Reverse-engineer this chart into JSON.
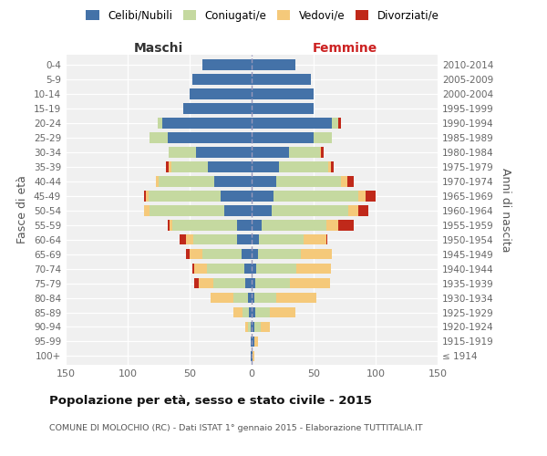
{
  "age_groups": [
    "100+",
    "95-99",
    "90-94",
    "85-89",
    "80-84",
    "75-79",
    "70-74",
    "65-69",
    "60-64",
    "55-59",
    "50-54",
    "45-49",
    "40-44",
    "35-39",
    "30-34",
    "25-29",
    "20-24",
    "15-19",
    "10-14",
    "5-9",
    "0-4"
  ],
  "birth_years": [
    "≤ 1914",
    "1915-1919",
    "1920-1924",
    "1925-1929",
    "1930-1934",
    "1935-1939",
    "1940-1944",
    "1945-1949",
    "1950-1954",
    "1955-1959",
    "1960-1964",
    "1965-1969",
    "1970-1974",
    "1975-1979",
    "1980-1984",
    "1985-1989",
    "1990-1994",
    "1995-1999",
    "2000-2004",
    "2005-2009",
    "2010-2014"
  ],
  "colors": {
    "celibi": "#4472a8",
    "coniugati": "#c5d9a0",
    "vedovi": "#f5c97a",
    "divorziati": "#c0291a"
  },
  "males": {
    "celibi": [
      1,
      1,
      1,
      2,
      3,
      5,
      6,
      8,
      12,
      12,
      22,
      25,
      30,
      35,
      45,
      68,
      72,
      55,
      50,
      48,
      40
    ],
    "coniugati": [
      0,
      0,
      2,
      5,
      12,
      26,
      30,
      32,
      35,
      52,
      60,
      58,
      45,
      30,
      22,
      14,
      4,
      0,
      0,
      0,
      0
    ],
    "vedovi": [
      0,
      0,
      2,
      8,
      18,
      12,
      10,
      10,
      6,
      2,
      5,
      2,
      2,
      2,
      0,
      0,
      0,
      0,
      0,
      0,
      0
    ],
    "divorziati": [
      0,
      0,
      0,
      0,
      0,
      3,
      2,
      3,
      5,
      2,
      0,
      2,
      0,
      2,
      0,
      0,
      0,
      0,
      0,
      0,
      0
    ]
  },
  "females": {
    "nubili": [
      1,
      2,
      2,
      3,
      2,
      3,
      4,
      5,
      6,
      8,
      16,
      18,
      20,
      22,
      30,
      50,
      65,
      50,
      50,
      48,
      35
    ],
    "coniugate": [
      0,
      0,
      5,
      12,
      18,
      28,
      32,
      35,
      36,
      52,
      62,
      68,
      52,
      40,
      25,
      15,
      5,
      0,
      0,
      0,
      0
    ],
    "vedove": [
      1,
      3,
      8,
      20,
      32,
      32,
      28,
      25,
      18,
      10,
      8,
      6,
      5,
      2,
      1,
      0,
      0,
      0,
      0,
      0,
      0
    ],
    "divorziate": [
      0,
      0,
      0,
      0,
      0,
      0,
      0,
      0,
      1,
      12,
      8,
      8,
      5,
      2,
      2,
      0,
      2,
      0,
      0,
      0,
      0
    ]
  },
  "xlim": 150,
  "title": "Popolazione per età, sesso e stato civile - 2015",
  "subtitle": "COMUNE DI MOLOCHIO (RC) - Dati ISTAT 1° gennaio 2015 - Elaborazione TUTTITALIA.IT",
  "ylabel_left": "Fasce di età",
  "ylabel_right": "Anni di nascita",
  "xlabel_maschi": "Maschi",
  "xlabel_femmine": "Femmine",
  "legend_labels": [
    "Celibi/Nubili",
    "Coniugati/e",
    "Vedovi/e",
    "Divorziati/e"
  ],
  "bg_color": "#f0f0f0",
  "grid_color": "white",
  "center_line_color": "#9999bb"
}
